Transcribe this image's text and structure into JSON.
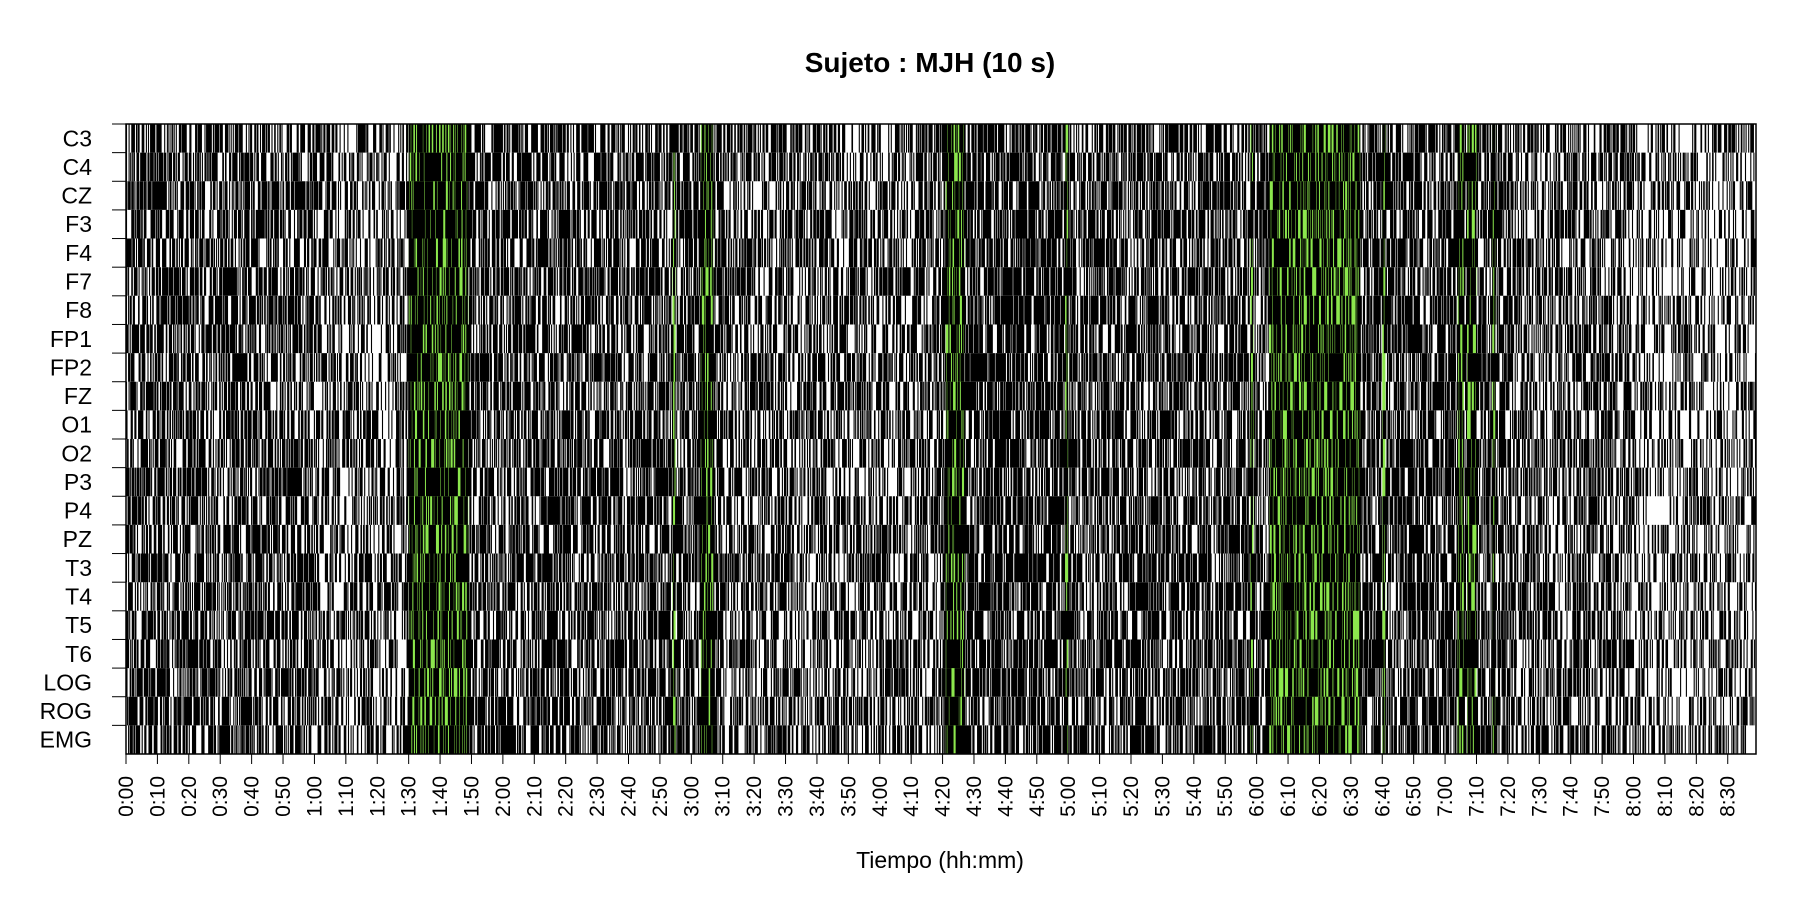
{
  "chart_data": {
    "type": "heatmap",
    "title": "Sujeto : MJH  (10 s)",
    "xlabel": "Tiempo (hh:mm)",
    "ylabel": "",
    "channels": [
      "C3",
      "C4",
      "CZ",
      "F3",
      "F4",
      "F7",
      "F8",
      "FP1",
      "FP2",
      "FZ",
      "O1",
      "O2",
      "P3",
      "P4",
      "PZ",
      "T3",
      "T4",
      "T5",
      "T6",
      "LOG",
      "ROG",
      "EMG"
    ],
    "x_tick_labels": [
      "0:00",
      "0:10",
      "0:20",
      "0:30",
      "0:40",
      "0:50",
      "1:00",
      "1:10",
      "1:20",
      "1:30",
      "1:40",
      "1:50",
      "2:00",
      "2:10",
      "2:20",
      "2:30",
      "2:40",
      "2:50",
      "3:00",
      "3:10",
      "3:20",
      "3:30",
      "3:40",
      "3:50",
      "4:00",
      "4:10",
      "4:20",
      "4:30",
      "4:40",
      "4:50",
      "5:00",
      "5:10",
      "5:20",
      "5:30",
      "5:40",
      "5:50",
      "6:00",
      "6:10",
      "6:20",
      "6:30",
      "6:40",
      "6:50",
      "7:00",
      "7:10",
      "7:20",
      "7:30",
      "7:40",
      "7:50",
      "8:00",
      "8:10",
      "8:20",
      "8:30"
    ],
    "x_range_minutes": [
      0,
      519
    ],
    "epoch_seconds": 10,
    "grid": false,
    "legend": "none",
    "colors": {
      "mark": "#000000",
      "highlight": "#7fe43a",
      "background": "#ffffff"
    },
    "highlight_intervals_minutes": [
      [
        90,
        109
      ],
      [
        174,
        175
      ],
      [
        183,
        187
      ],
      [
        261,
        267
      ],
      [
        299,
        300
      ],
      [
        358,
        359
      ],
      [
        364,
        393
      ],
      [
        400,
        401
      ],
      [
        424,
        426
      ],
      [
        427,
        430
      ],
      [
        435,
        436
      ]
    ],
    "density_by_interval": [
      {
        "range": [
          0,
          60
        ],
        "level": 0.55
      },
      {
        "range": [
          60,
          90
        ],
        "level": 0.4
      },
      {
        "range": [
          90,
          110
        ],
        "level": 0.65
      },
      {
        "range": [
          110,
          170
        ],
        "level": 0.55
      },
      {
        "range": [
          170,
          190
        ],
        "level": 0.6
      },
      {
        "range": [
          190,
          260
        ],
        "level": 0.45
      },
      {
        "range": [
          260,
          300
        ],
        "level": 0.65
      },
      {
        "range": [
          300,
          360
        ],
        "level": 0.55
      },
      {
        "range": [
          360,
          440
        ],
        "level": 0.6
      },
      {
        "range": [
          440,
          480
        ],
        "level": 0.45
      },
      {
        "range": [
          480,
          519
        ],
        "level": 0.3
      }
    ]
  }
}
